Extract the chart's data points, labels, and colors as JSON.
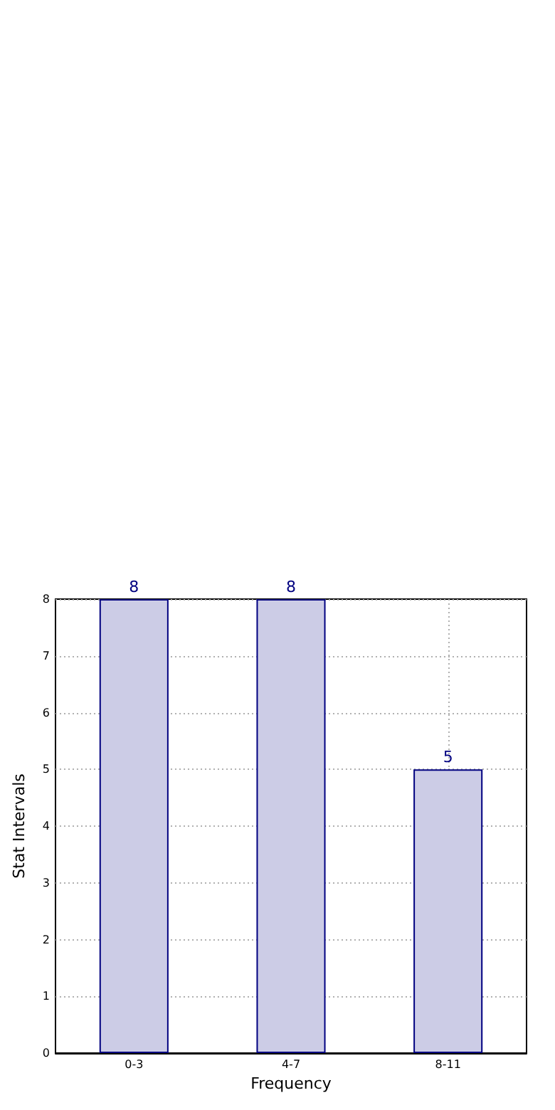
{
  "chart_data": {
    "type": "bar",
    "xlabel": "Frequency",
    "ylabel": "Stat Intervals",
    "categories": [
      "0-3",
      "4-7",
      "8-11"
    ],
    "values": [
      8,
      8,
      5
    ],
    "color": "#ccccE6",
    "ylim": [
      0,
      8
    ],
    "yticks": [
      0,
      1,
      2,
      3,
      4,
      5,
      6,
      7,
      8
    ],
    "grid": true,
    "data_labels": true
  }
}
